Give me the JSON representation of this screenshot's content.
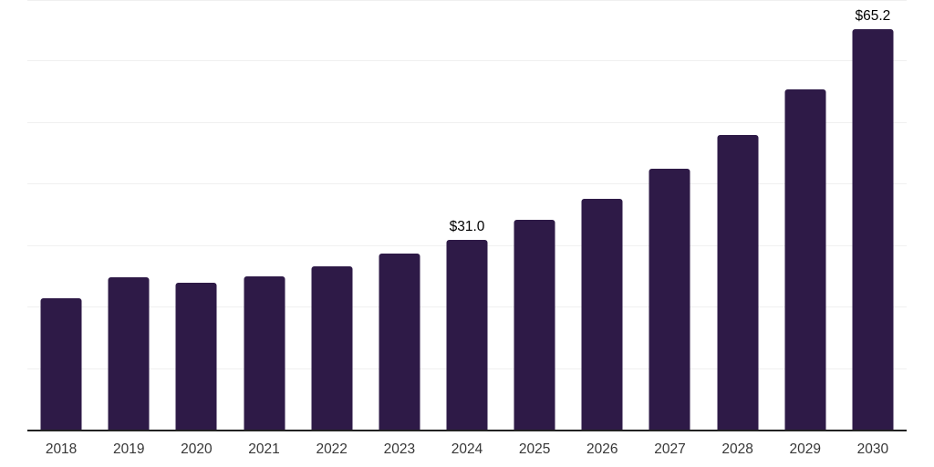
{
  "chart_data": {
    "type": "bar",
    "title": "",
    "xlabel": "",
    "ylabel": "",
    "categories": [
      "2018",
      "2019",
      "2020",
      "2021",
      "2022",
      "2023",
      "2024",
      "2025",
      "2026",
      "2027",
      "2028",
      "2029",
      "2030"
    ],
    "values": [
      21.5,
      24.9,
      24.1,
      25.1,
      26.7,
      28.8,
      31.0,
      34.3,
      37.7,
      42.5,
      48.1,
      55.5,
      65.2
    ],
    "data_labels": [
      "",
      "",
      "",
      "",
      "",
      "",
      "$31.0",
      "",
      "",
      "",
      "",
      "",
      "$65.2"
    ],
    "ylim": [
      0,
      70
    ],
    "gridline_step": 10,
    "grid": "horizontal",
    "legend_position": "none",
    "colors": {
      "bar": "#2e1a47",
      "gridline": "#f0f0f0",
      "axis_line": "#222222",
      "tick_label": "#373737",
      "data_label": "#000000",
      "background": "#ffffff"
    }
  }
}
